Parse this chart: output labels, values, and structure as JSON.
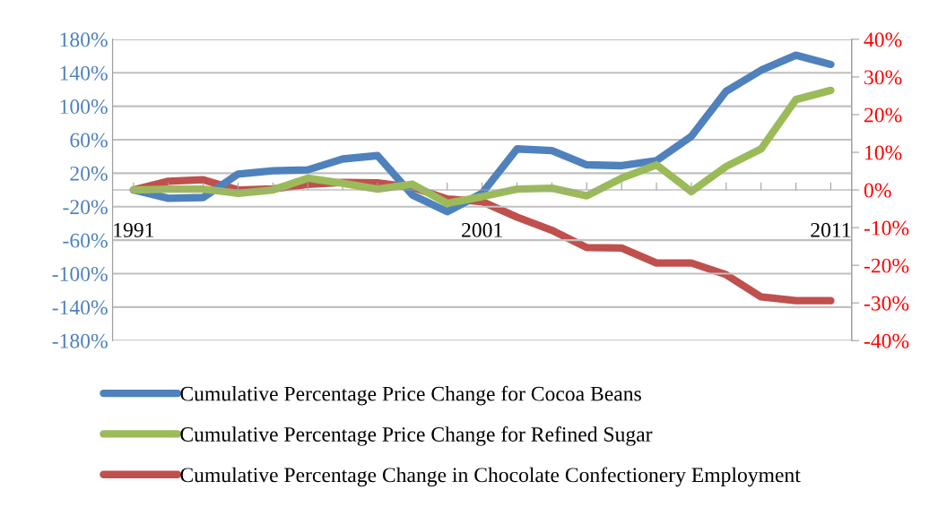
{
  "chart_data": {
    "type": "line",
    "categories": [
      "1991",
      null,
      null,
      null,
      null,
      null,
      null,
      null,
      null,
      null,
      "2001",
      null,
      null,
      null,
      null,
      null,
      null,
      null,
      null,
      null,
      "2011"
    ],
    "series": [
      {
        "name": "Cumulative Percentage Price Change for Cocoa Beans",
        "color": "#4f81bd",
        "values": [
          0,
          -10,
          -9,
          19,
          23,
          24,
          37,
          41,
          -6,
          -26,
          -4,
          49,
          47,
          30,
          29,
          35,
          64,
          118,
          143,
          161,
          150
        ]
      },
      {
        "name": "Cumulative Percentage Price Change for Refined Sugar",
        "color": "#9bbb59",
        "values": [
          0,
          1,
          1,
          -4,
          0,
          14,
          8,
          1,
          7,
          -16,
          -8,
          1,
          2,
          -7,
          14,
          30,
          -2,
          28,
          49,
          108,
          119
        ]
      },
      {
        "name": "Cumulative Percentage Change in Chocolate Confectionery Employment",
        "color": "#c0504d",
        "axis": "y2",
        "values": [
          0,
          2.3,
          2.7,
          0,
          0.3,
          1.5,
          2.0,
          1.9,
          0.7,
          -2.4,
          -3.1,
          -7.2,
          -10.7,
          -15.3,
          -15.4,
          -19.4,
          -19.4,
          -22.5,
          -28.4,
          -29.4,
          -29.4
        ]
      }
    ],
    "ylim": [
      -180,
      180
    ],
    "yticks": [
      {
        "value": -180,
        "label": "-180%"
      },
      {
        "value": -140,
        "label": "-140%"
      },
      {
        "value": -100,
        "label": "-100%"
      },
      {
        "value": -60,
        "label": "-60%"
      },
      {
        "value": -20,
        "label": "-20%"
      },
      {
        "value": 20,
        "label": "20%"
      },
      {
        "value": 60,
        "label": "60%"
      },
      {
        "value": 100,
        "label": "100%"
      },
      {
        "value": 140,
        "label": "140%"
      },
      {
        "value": 180,
        "label": "180%"
      }
    ],
    "y2lim": [
      -40,
      40
    ],
    "y2ticks": [
      {
        "value": -40,
        "label": "-40%"
      },
      {
        "value": -30,
        "label": "-30%"
      },
      {
        "value": -20,
        "label": "-20%"
      },
      {
        "value": -10,
        "label": "-10%"
      },
      {
        "value": 0,
        "label": "0%"
      },
      {
        "value": 10,
        "label": "10%"
      },
      {
        "value": 20,
        "label": "20%"
      },
      {
        "value": 30,
        "label": "30%"
      },
      {
        "value": 40,
        "label": "40%"
      }
    ],
    "grid": "y",
    "legend": "bottom",
    "marker": "none",
    "line_style": "solid"
  }
}
